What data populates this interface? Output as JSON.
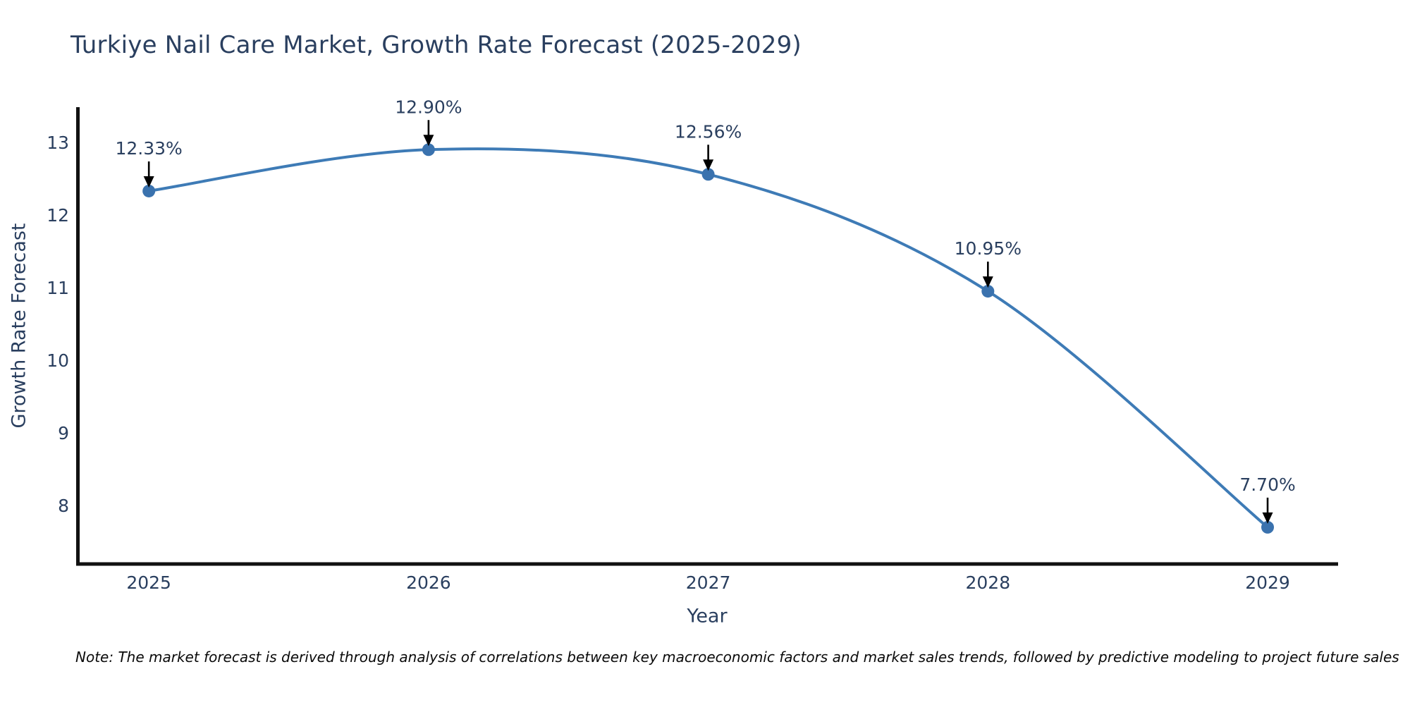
{
  "chart": {
    "title": "Turkiye Nail Care Market, Growth Rate Forecast (2025-2029)",
    "xlabel": "Year",
    "ylabel": "Growth Rate Forecast",
    "note": "Note: The market forecast is derived through analysis of correlations between key macroeconomic factors and market sales trends, followed by predictive modeling to project future sales"
  },
  "chart_data": {
    "type": "line",
    "title": "Turkiye Nail Care Market, Growth Rate Forecast (2025-2029)",
    "xlabel": "Year",
    "ylabel": "Growth Rate Forecast",
    "x": [
      2025,
      2026,
      2027,
      2028,
      2029
    ],
    "series": [
      {
        "name": "Growth Rate Forecast",
        "values": [
          12.33,
          12.9,
          12.56,
          10.95,
          7.7
        ]
      }
    ],
    "point_labels": [
      "12.33%",
      "12.90%",
      "12.56%",
      "10.95%",
      "7.70%"
    ],
    "x_ticks": [
      "2025",
      "2026",
      "2027",
      "2028",
      "2029"
    ],
    "y_ticks": [
      8,
      9,
      10,
      11,
      12,
      13
    ],
    "x_range": [
      2024.745,
      2029.252
    ],
    "y_range": [
      7.194,
      13.485
    ],
    "line_shape": "spline",
    "grid": false,
    "legend": false,
    "colors": {
      "line": "#3e7bb6",
      "marker": "#3a72ae",
      "arrow": "#000000",
      "axis": "#111111",
      "tick_text": "#2a3f5f",
      "annotation_text": "#2a3f5f"
    }
  }
}
